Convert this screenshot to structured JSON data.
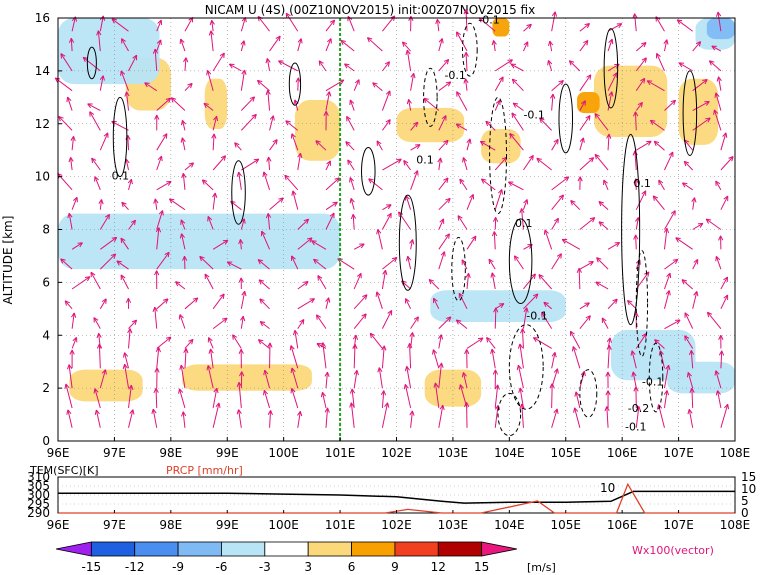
{
  "title": "NICAM U (4S) (00Z10NOV2015) init:00Z07NOV2015 fix",
  "chart_data": [
    {
      "type": "heatmap",
      "panel": "main",
      "title": "NICAM U (4S) (00Z10NOV2015) init:00Z07NOV2015 fix",
      "ylabel": "ALTITUDE [km]",
      "xlabel": "",
      "x_ticks": [
        "96E",
        "97E",
        "98E",
        "99E",
        "100E",
        "101E",
        "102E",
        "103E",
        "104E",
        "105E",
        "106E",
        "107E",
        "108E"
      ],
      "y_ticks": [
        "0",
        "2",
        "4",
        "6",
        "8",
        "10",
        "12",
        "14",
        "16"
      ],
      "xlim": [
        96,
        108
      ],
      "ylim": [
        0,
        16
      ],
      "grid": true,
      "marker_line_x": 101,
      "contour_labels": [
        {
          "text": "0.1",
          "x": 96.95,
          "y": 9.9
        },
        {
          "text": "-0.1",
          "x": 102.85,
          "y": 13.7
        },
        {
          "text": "-0.1",
          "x": 103.45,
          "y": 15.8
        },
        {
          "text": "-0.1",
          "x": 104.25,
          "y": 12.2
        },
        {
          "text": "0.1",
          "x": 102.35,
          "y": 10.5
        },
        {
          "text": "0.1",
          "x": 104.1,
          "y": 8.1
        },
        {
          "text": "-0.1",
          "x": 104.3,
          "y": 4.6
        },
        {
          "text": "0.1",
          "x": 106.2,
          "y": 9.6
        },
        {
          "text": "-0.1",
          "x": 106.35,
          "y": 2.1
        },
        {
          "text": "-0.2",
          "x": 106.1,
          "y": 1.1
        },
        {
          "text": "-0.1",
          "x": 106.05,
          "y": 0.4
        }
      ],
      "series": [
        {
          "level": 3,
          "regions": [
            {
              "x": [
                97.2,
                98.0
              ],
              "y": [
                12.5,
                14.5
              ]
            },
            {
              "x": [
                98.6,
                99.0
              ],
              "y": [
                11.8,
                13.7
              ]
            },
            {
              "x": [
                96.2,
                97.5
              ],
              "y": [
                1.5,
                2.7
              ]
            },
            {
              "x": [
                98.2,
                100.5
              ],
              "y": [
                1.9,
                2.9
              ]
            },
            {
              "x": [
                102.5,
                103.5
              ],
              "y": [
                1.3,
                2.7
              ]
            },
            {
              "x": [
                100.2,
                101.0
              ],
              "y": [
                10.6,
                12.9
              ]
            },
            {
              "x": [
                105.5,
                106.8
              ],
              "y": [
                11.5,
                14.2
              ]
            },
            {
              "x": [
                102.0,
                103.2
              ],
              "y": [
                11.3,
                12.6
              ]
            },
            {
              "x": [
                103.5,
                104.2
              ],
              "y": [
                10.5,
                11.8
              ]
            },
            {
              "x": [
                107.0,
                107.7
              ],
              "y": [
                11.2,
                13.7
              ]
            }
          ]
        },
        {
          "level": 6,
          "regions": [
            {
              "x": [
                105.2,
                105.6
              ],
              "y": [
                12.4,
                13.2
              ]
            },
            {
              "x": [
                103.7,
                104.0
              ],
              "y": [
                15.3,
                16.0
              ]
            }
          ]
        },
        {
          "level": -3,
          "regions": [
            {
              "x": [
                96.0,
                101.0
              ],
              "y": [
                6.5,
                8.6
              ]
            },
            {
              "x": [
                96.0,
                97.8
              ],
              "y": [
                13.5,
                16.0
              ]
            },
            {
              "x": [
                102.6,
                105.0
              ],
              "y": [
                4.5,
                5.7
              ]
            },
            {
              "x": [
                107.3,
                108.0
              ],
              "y": [
                14.8,
                16.0
              ]
            },
            {
              "x": [
                105.8,
                107.3
              ],
              "y": [
                2.3,
                4.2
              ]
            },
            {
              "x": [
                106.8,
                108.0
              ],
              "y": [
                1.8,
                3.0
              ]
            }
          ]
        },
        {
          "level": -6,
          "regions": [
            {
              "x": [
                107.5,
                108.0
              ],
              "y": [
                15.2,
                16.0
              ]
            }
          ]
        }
      ]
    },
    {
      "type": "line",
      "panel": "surface",
      "title": "",
      "x_ticks": [
        "96E",
        "97E",
        "98E",
        "99E",
        "100E",
        "101E",
        "102E",
        "103E",
        "104E",
        "105E",
        "106E",
        "107E",
        "108E"
      ],
      "series": [
        {
          "name": "TEM(SFC)[K]",
          "x": [
            96,
            97,
            98,
            99,
            100,
            101,
            102,
            102.8,
            103.2,
            104,
            105,
            105.8,
            106.2,
            107,
            108
          ],
          "values": [
            301,
            301,
            301,
            301,
            300.5,
            300,
            299,
            296.5,
            295.5,
            296,
            296,
            296.5,
            302,
            302,
            302
          ]
        },
        {
          "name": "PRCP [mm/hr]",
          "x": [
            96,
            101,
            101.8,
            102.2,
            102.8,
            103.5,
            104.3,
            104.5,
            104.8,
            105.5,
            105.9,
            106.1,
            106.4,
            108
          ],
          "values": [
            0,
            0,
            0,
            1.5,
            0,
            0,
            4,
            5,
            0,
            0,
            0,
            12,
            0,
            0
          ]
        }
      ],
      "y_left_ticks": [
        "290",
        "295",
        "300",
        "305",
        "310"
      ],
      "y_right_ticks": [
        "0",
        "5",
        "10",
        "15"
      ],
      "annotation": "10"
    }
  ],
  "labels": {
    "ylabel": "ALTITUDE [km]",
    "tem_label": "TEM(SFC)[K]",
    "prcp_label": "PRCP [mm/hr]",
    "inset_annotation": "10",
    "colorbar_unit": "[m/s]",
    "vector_label": "Wx100(vector)"
  },
  "colorbar": {
    "ticks": [
      "-15",
      "-12",
      "-9",
      "-6",
      "-3",
      "3",
      "6",
      "9",
      "12",
      "15"
    ],
    "colors": [
      "#a020f0",
      "#1e60e0",
      "#4a8ef0",
      "#7fbaf5",
      "#b8e4f5",
      "#ffffff",
      "#fbd87a",
      "#f8a000",
      "#f04020",
      "#b00000",
      "#e8187e"
    ]
  },
  "colors": {
    "vector": "#e0147a",
    "precip": "#e0402a",
    "marker_line": "#20a020",
    "positive_fill": "#fbd87a",
    "strong_positive_fill": "#f8a000",
    "negative_fill": "#b8e4f5",
    "strong_negative_fill": "#7fbaf5"
  }
}
